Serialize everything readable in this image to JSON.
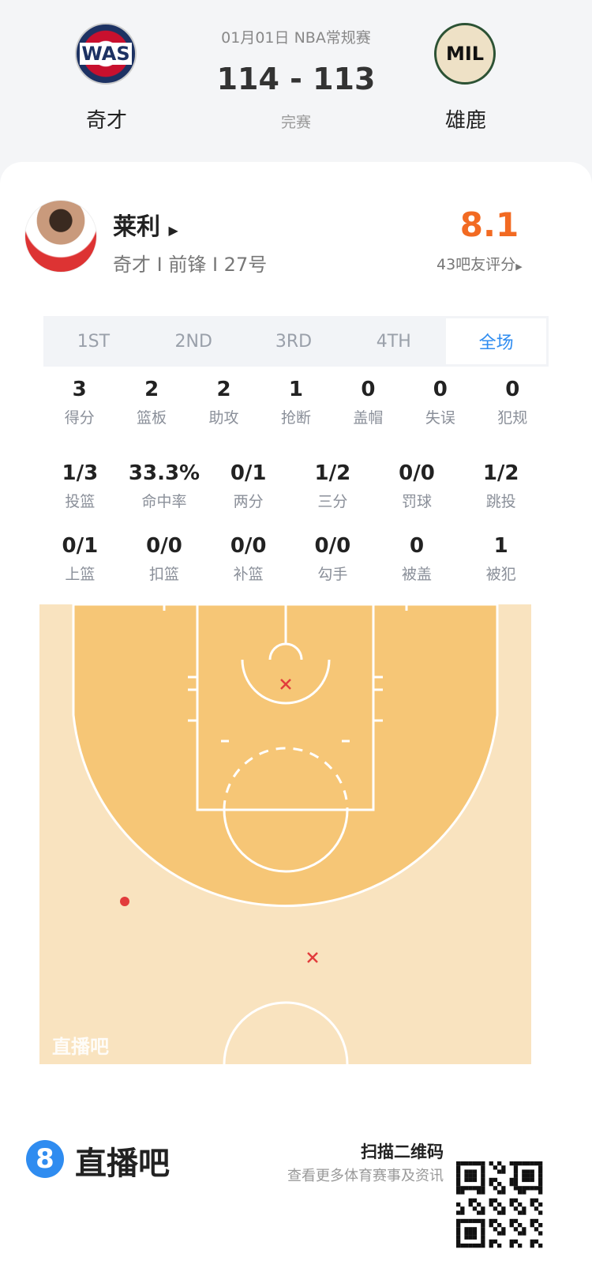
{
  "header": {
    "date_league": "01月01日 NBA常规赛",
    "score": "114 - 113",
    "status": "完赛",
    "home": {
      "abbr": "WAS",
      "name": "奇才"
    },
    "away": {
      "abbr": "MIL",
      "name": "雄鹿"
    }
  },
  "player": {
    "name": "莱利",
    "info": "奇才 I 前锋 I 27号",
    "rating": "8.1",
    "rating_label": "43吧友评分",
    "rating_color": "#f26a22"
  },
  "tabs": [
    {
      "label": "1ST"
    },
    {
      "label": "2ND"
    },
    {
      "label": "3RD"
    },
    {
      "label": "4TH"
    },
    {
      "label": "全场"
    }
  ],
  "active_tab": "全场",
  "stats_row1": [
    {
      "v": "3",
      "l": "得分"
    },
    {
      "v": "2",
      "l": "篮板"
    },
    {
      "v": "2",
      "l": "助攻"
    },
    {
      "v": "1",
      "l": "抢断"
    },
    {
      "v": "0",
      "l": "盖帽"
    },
    {
      "v": "0",
      "l": "失误"
    },
    {
      "v": "0",
      "l": "犯规"
    }
  ],
  "stats_row2": [
    {
      "v": "1/3",
      "l": "投篮"
    },
    {
      "v": "33.3%",
      "l": "命中率"
    },
    {
      "v": "0/1",
      "l": "两分"
    },
    {
      "v": "1/2",
      "l": "三分"
    },
    {
      "v": "0/0",
      "l": "罚球"
    },
    {
      "v": "1/2",
      "l": "跳投"
    }
  ],
  "stats_row3": [
    {
      "v": "0/1",
      "l": "上篮"
    },
    {
      "v": "0/0",
      "l": "扣篮"
    },
    {
      "v": "0/0",
      "l": "补篮"
    },
    {
      "v": "0/0",
      "l": "勾手"
    },
    {
      "v": "0",
      "l": "被盖"
    },
    {
      "v": "1",
      "l": "被犯"
    }
  ],
  "shot_chart": {
    "watermark": "直播吧",
    "shots": [
      {
        "result": "made",
        "zone": "left wing three"
      },
      {
        "result": "missed",
        "zone": "paint"
      },
      {
        "result": "missed",
        "zone": "top of key three"
      }
    ]
  },
  "footer": {
    "brand": "直播吧",
    "scan": "扫描二维码",
    "sub": "查看更多体育赛事及资讯"
  }
}
